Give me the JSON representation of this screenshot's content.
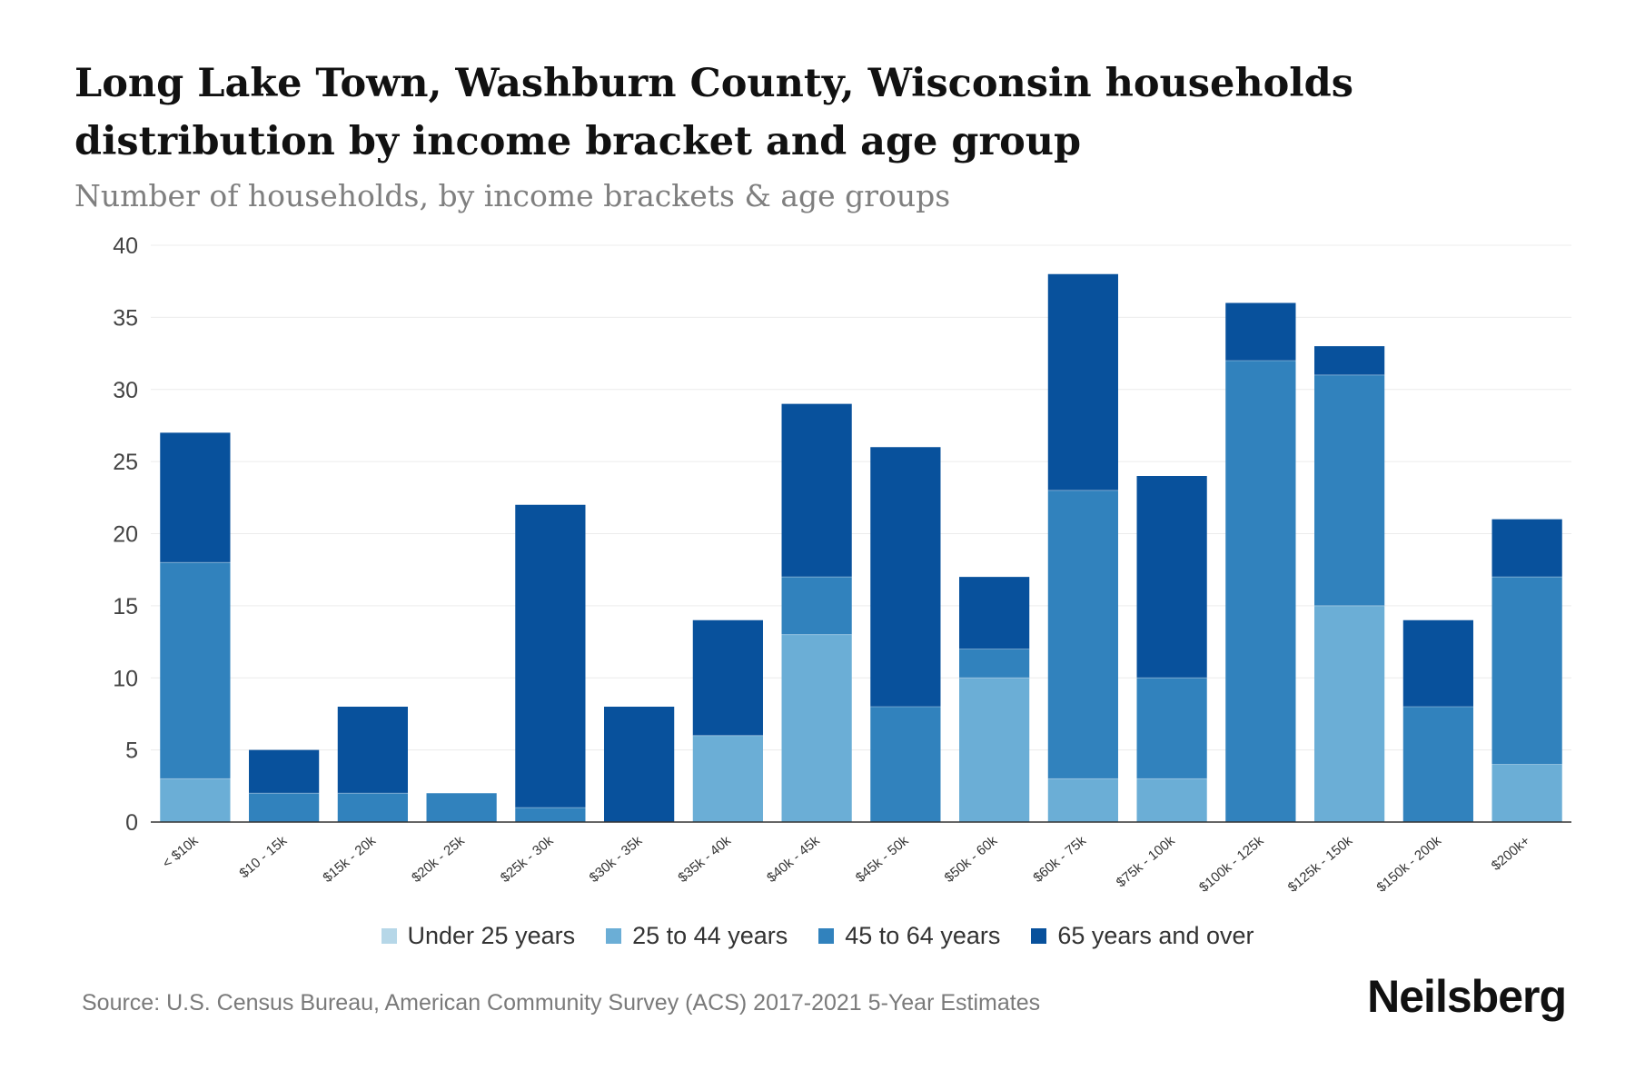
{
  "title": "Long Lake Town, Washburn County, Wisconsin households distribution by income bracket and age group",
  "subtitle": "Number of households, by income brackets & age groups",
  "source": "Source: U.S. Census Bureau, American Community Survey (ACS) 2017-2021 5-Year Estimates",
  "brand": "Neilsberg",
  "chart_data": {
    "type": "bar",
    "stacked": true,
    "title": "Long Lake Town, Washburn County, Wisconsin households distribution by income bracket and age group",
    "subtitle": "Number of households, by income brackets & age groups",
    "xlabel": "",
    "ylabel": "",
    "ylim": [
      0,
      40
    ],
    "yticks": [
      0,
      5,
      10,
      15,
      20,
      25,
      30,
      35,
      40
    ],
    "grid": true,
    "legend_position": "bottom",
    "categories": [
      "< $10k",
      "$10 - 15k",
      "$15k - 20k",
      "$20k - 25k",
      "$25k - 30k",
      "$30k - 35k",
      "$35k - 40k",
      "$40k - 45k",
      "$45k - 50k",
      "$50k - 60k",
      "$60k - 75k",
      "$75k - 100k",
      "$100k - 125k",
      "$125k - 150k",
      "$150k - 200k",
      "$200k+"
    ],
    "series": [
      {
        "name": "Under 25 years",
        "color": "#b6d7e8",
        "values": [
          0,
          0,
          0,
          0,
          0,
          0,
          0,
          0,
          0,
          0,
          0,
          0,
          0,
          0,
          0,
          0
        ]
      },
      {
        "name": "25 to 44 years",
        "color": "#6baed6",
        "values": [
          3,
          0,
          0,
          0,
          0,
          0,
          6,
          13,
          0,
          10,
          3,
          3,
          0,
          15,
          0,
          4
        ]
      },
      {
        "name": "45 to 64 years",
        "color": "#3182bd",
        "values": [
          15,
          2,
          2,
          2,
          1,
          0,
          0,
          4,
          8,
          2,
          20,
          7,
          32,
          16,
          8,
          13
        ]
      },
      {
        "name": "65 years and over",
        "color": "#08519c",
        "values": [
          9,
          3,
          6,
          0,
          21,
          8,
          8,
          12,
          18,
          5,
          15,
          14,
          4,
          2,
          6,
          4
        ]
      }
    ]
  }
}
